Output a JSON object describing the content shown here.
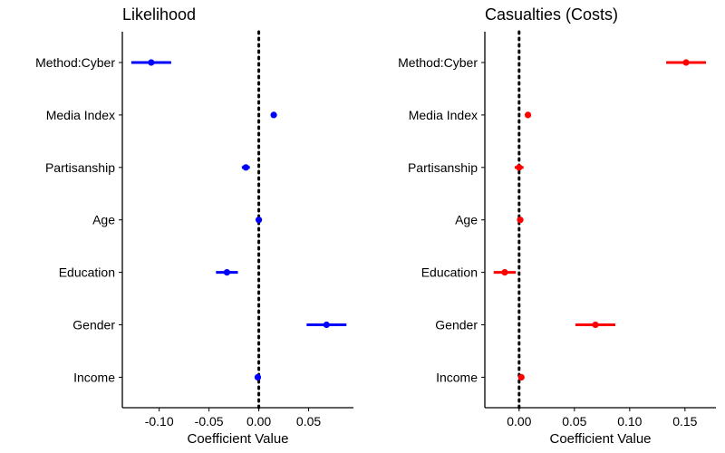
{
  "chart_data": [
    {
      "type": "scatter",
      "title": "Likelihood",
      "xlabel": "Coefficient Value",
      "ylabel": "",
      "categories": [
        "Method:Cyber",
        "Media Index",
        "Partisanship",
        "Age",
        "Education",
        "Gender",
        "Income"
      ],
      "estimates": [
        -0.108,
        0.015,
        -0.013,
        0.0,
        -0.032,
        0.068,
        -0.001
      ],
      "ci_low": [
        -0.128,
        0.014,
        -0.017,
        -0.001,
        -0.043,
        0.048,
        -0.002
      ],
      "ci_high": [
        -0.088,
        0.016,
        -0.009,
        0.001,
        -0.021,
        0.088,
        0.0
      ],
      "xlim": [
        -0.137,
        0.095
      ],
      "xticks": [
        -0.1,
        -0.05,
        0.0,
        0.05
      ],
      "xtick_labels": [
        "-0.10",
        "-0.05",
        "0.00",
        "0.05"
      ],
      "reference_line": 0,
      "color": "#0000FF",
      "grid": false
    },
    {
      "type": "scatter",
      "title": "Casualties (Costs)",
      "xlabel": "Coefficient Value",
      "ylabel": "",
      "categories": [
        "Method:Cyber",
        "Media Index",
        "Partisanship",
        "Age",
        "Education",
        "Gender",
        "Income"
      ],
      "estimates": [
        0.151,
        0.008,
        0.0,
        0.001,
        -0.013,
        0.069,
        0.002
      ],
      "ci_low": [
        0.133,
        0.007,
        -0.004,
        0.0,
        -0.023,
        0.051,
        0.001
      ],
      "ci_high": [
        0.169,
        0.009,
        0.004,
        0.002,
        -0.003,
        0.087,
        0.003
      ],
      "xlim": [
        -0.031,
        0.178
      ],
      "xticks": [
        0.0,
        0.05,
        0.1,
        0.15
      ],
      "xtick_labels": [
        "0.00",
        "0.05",
        "0.10",
        "0.15"
      ],
      "reference_line": 0,
      "color": "#FF0000",
      "grid": false
    }
  ]
}
